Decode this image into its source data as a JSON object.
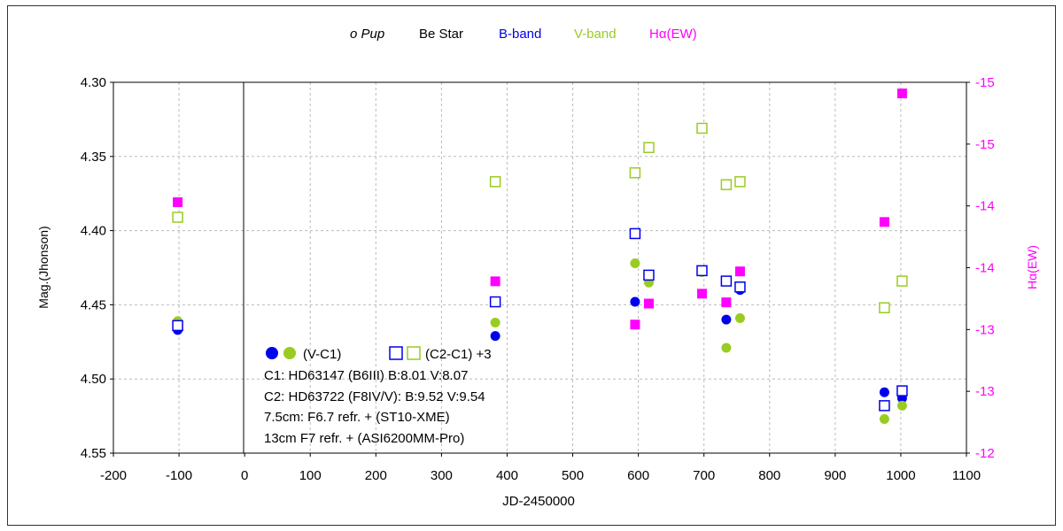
{
  "chart_data": {
    "type": "scatter",
    "title": {
      "star": "o Pup",
      "star_type": "Be Star",
      "band_b": "B-band",
      "band_v": "V-band",
      "band_ha": "Hα(EW)"
    },
    "xlabel": "JD-2450000",
    "ylabel": "Mag.(Jhonson)",
    "y2label": "Hα(EW)",
    "xlim": [
      -200,
      1100
    ],
    "ylim": [
      4.55,
      4.3
    ],
    "y2lim": [
      -12,
      -15
    ],
    "x_ticks": [
      "-200",
      "-100",
      "0",
      "100",
      "200",
      "300",
      "400",
      "500",
      "600",
      "700",
      "800",
      "900",
      "1000",
      "1100"
    ],
    "y_ticks": [
      "4.30",
      "4.35",
      "4.40",
      "4.45",
      "4.50",
      "4.55"
    ],
    "y2_ticks": [
      "-15",
      "-15",
      "-14",
      "-14",
      "-13",
      "-13",
      "-12"
    ],
    "colors": {
      "b": "#0000ee",
      "v": "#99cc22",
      "ha": "#ff00ff",
      "grid": "#bbbbbb"
    },
    "series": [
      {
        "name": "B (V-C1)",
        "marker": "filled-circle",
        "color": "#0000ee",
        "x": [
          -102,
          382,
          595,
          697,
          734,
          755,
          975,
          1002
        ],
        "y": [
          4.467,
          4.471,
          4.448,
          4.427,
          4.46,
          4.44,
          4.509,
          4.513
        ]
      },
      {
        "name": "V (V-C1)",
        "marker": "filled-circle",
        "color": "#99cc22",
        "x": [
          -102,
          382,
          595,
          616,
          697,
          734,
          755,
          975,
          1002
        ],
        "y": [
          4.461,
          4.462,
          4.422,
          4.435,
          4.428,
          4.479,
          4.459,
          4.527,
          4.518
        ]
      },
      {
        "name": "B (C2-C1)+3",
        "marker": "open-square",
        "color": "#0000ee",
        "x": [
          -102,
          382,
          595,
          616,
          697,
          734,
          755,
          975,
          1002
        ],
        "y": [
          4.464,
          4.448,
          4.402,
          4.43,
          4.427,
          4.434,
          4.438,
          4.518,
          4.508
        ]
      },
      {
        "name": "V (C2-C1)+3",
        "marker": "open-square",
        "color": "#99cc22",
        "x": [
          -102,
          382,
          595,
          616,
          697,
          734,
          755,
          975,
          1002
        ],
        "y": [
          4.391,
          4.367,
          4.361,
          4.344,
          4.331,
          4.369,
          4.367,
          4.452,
          4.434
        ]
      },
      {
        "name": "Hα(EW)",
        "marker": "filled-square",
        "color": "#ff00ff",
        "axis": "right",
        "x": [
          -102,
          382,
          595,
          616,
          697,
          734,
          755,
          975,
          1002
        ],
        "y": [
          -14.03,
          -13.39,
          -13.04,
          -13.21,
          -13.29,
          -13.22,
          -13.47,
          -13.87,
          -14.91
        ]
      }
    ],
    "legend": {
      "row1_label1": "(V-C1)",
      "row1_label2": "(C2-C1) +3",
      "line2": "C1: HD63147 (B6III) B:8.01 V:8.07",
      "line3": "C2: HD63722 (F8IV/V): B:9.52 V:9.54",
      "line4": "7.5cm: F6.7 refr. + (ST10-XME)",
      "line5": "13cm F7 refr.  +  (ASI6200MM-Pro)"
    }
  }
}
